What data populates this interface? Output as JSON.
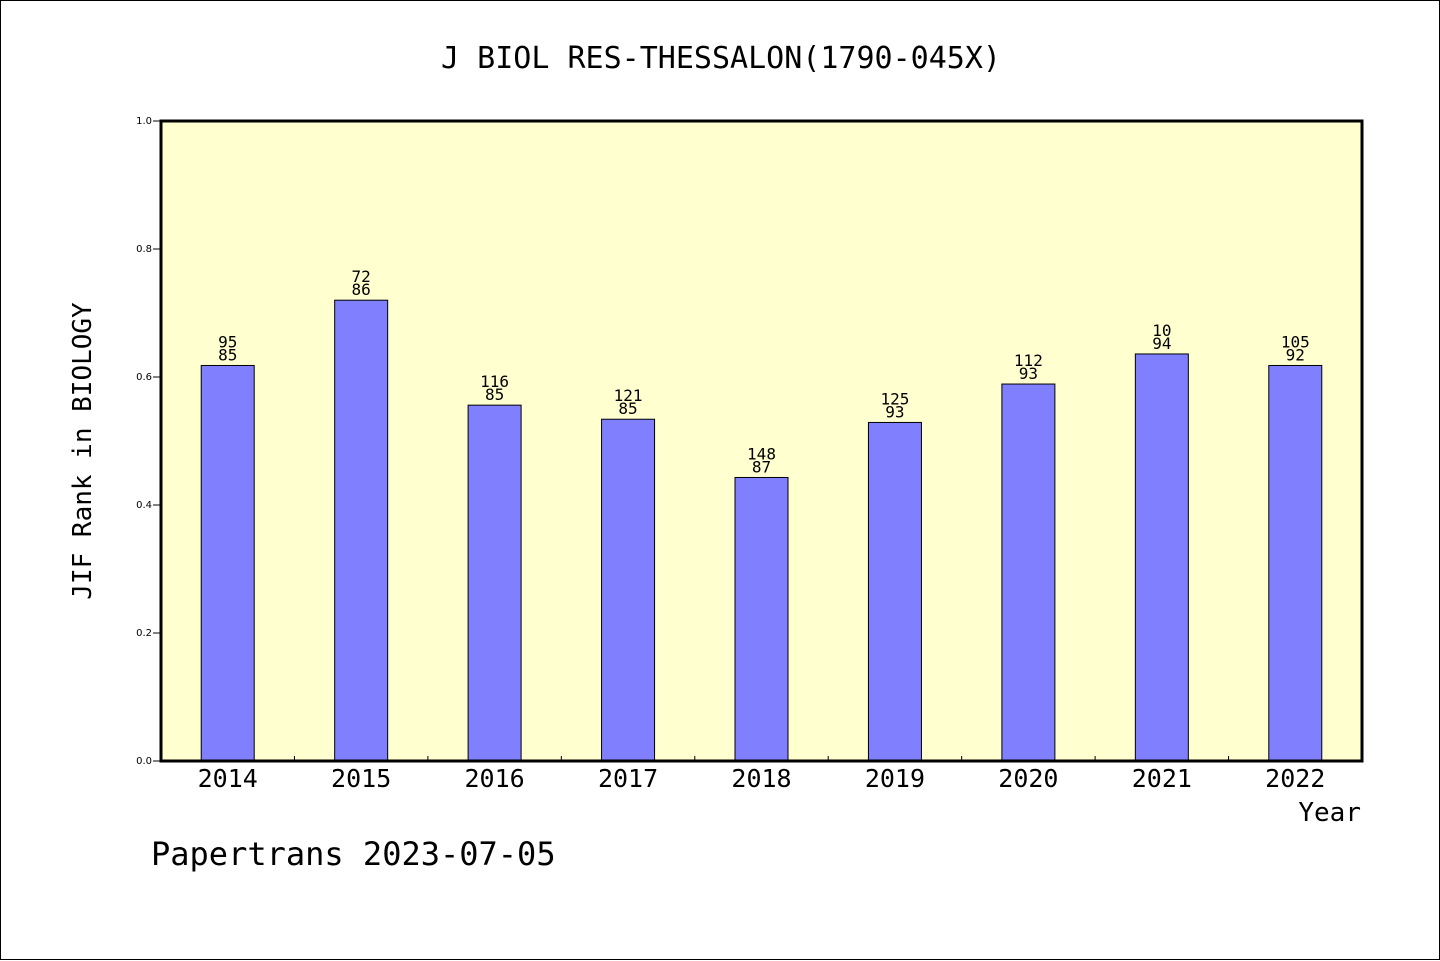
{
  "chart_data": {
    "type": "bar",
    "title": "J BIOL RES-THESSALON(1790-045X)",
    "xlabel": "Year",
    "ylabel": "JIF Rank in BIOLOGY",
    "ylim": [
      0,
      1.0
    ],
    "yticks": [
      "0.0",
      "0.2",
      "0.4",
      "0.6",
      "0.8",
      "1.0"
    ],
    "categories": [
      "2014",
      "2015",
      "2016",
      "2017",
      "2018",
      "2019",
      "2020",
      "2021",
      "2022"
    ],
    "values": [
      0.618,
      0.72,
      0.556,
      0.534,
      0.443,
      0.529,
      0.589,
      0.636,
      0.618
    ],
    "rank_labels": [
      "95",
      "72",
      "116",
      "121",
      "148",
      "125",
      "112",
      "10",
      "105"
    ],
    "total_labels": [
      "85",
      "86",
      "85",
      "85",
      "87",
      "93",
      "93",
      "94",
      "92"
    ],
    "grid": false,
    "legend": "none",
    "colors": {
      "plot_bg": "#ffffd0",
      "bar": "#8080ff"
    }
  },
  "footer": "Papertrans 2023-07-05"
}
